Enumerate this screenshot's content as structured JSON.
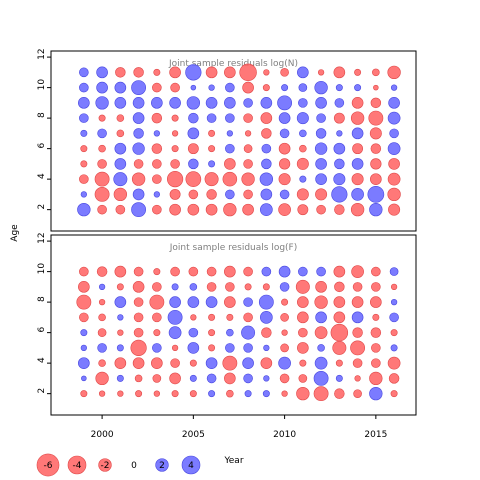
{
  "chart_data": {
    "type": "bubble-residual",
    "ylabel": "Age",
    "xlabel": "Year",
    "colors": {
      "negative": "#ff6060",
      "positive": "#6464ff",
      "border_negative": "#e04848",
      "border_positive": "#4848e0"
    },
    "x_ticks": [
      2000,
      2005,
      2010,
      2015
    ],
    "y_ticks": [
      2,
      4,
      6,
      8,
      10,
      12
    ],
    "xlim": [
      1997.2,
      2017.2
    ],
    "ylim": [
      0.6,
      12.4
    ],
    "years": [
      1999,
      2000,
      2001,
      2002,
      2003,
      2004,
      2005,
      2006,
      2007,
      2008,
      2009,
      2010,
      2011,
      2012,
      2013,
      2014,
      2015,
      2016
    ],
    "ages": [
      2,
      3,
      4,
      5,
      6,
      7,
      8,
      9,
      10,
      11
    ],
    "legend": {
      "values": [
        -6,
        -4,
        -2,
        0,
        2,
        4
      ],
      "labels": [
        "-6",
        "-4",
        "-2",
        "0",
        "2",
        "4"
      ]
    },
    "panels": [
      {
        "title": "Joint sample residuals log(N)",
        "residuals": [
          [
            2.0,
            -1.0,
            -1.0,
            2.5,
            -1.0,
            -1.5,
            -1.5,
            -1.5,
            -2.0,
            -1.5,
            1.8,
            -1.8,
            -1.3,
            -1.0,
            -1.2,
            -2.0,
            2.0,
            -1.6
          ],
          [
            0.4,
            -2.5,
            -2.0,
            1.5,
            0.4,
            -1.3,
            -1.0,
            -1.2,
            1.0,
            -1.0,
            1.5,
            1.0,
            -1.6,
            -1.6,
            3.0,
            1.8,
            3.2,
            -2.0
          ],
          [
            -1.0,
            -2.5,
            2.2,
            -2.0,
            -1.0,
            -3.0,
            -2.8,
            -2.2,
            -2.4,
            -2.0,
            2.0,
            -1.6,
            0.5,
            1.5,
            1.6,
            -1.6,
            -1.5,
            -1.8
          ],
          [
            -0.5,
            -1.0,
            1.5,
            -1.0,
            -1.0,
            -1.0,
            1.2,
            0.5,
            -1.5,
            -1.0,
            1.2,
            -1.4,
            -1.6,
            1.5,
            1.2,
            1.5,
            -1.4,
            -1.5
          ],
          [
            -0.5,
            -0.6,
            1.5,
            1.7,
            -1.2,
            -0.5,
            -1.3,
            -0.5,
            1.0,
            -0.8,
            1.0,
            -1.5,
            -0.6,
            1.7,
            1.5,
            -1.3,
            -1.2,
            1.8
          ],
          [
            0.5,
            1.0,
            -0.6,
            1.2,
            0.4,
            -0.4,
            1.5,
            -0.5,
            0.4,
            -0.4,
            -1.2,
            1.0,
            0.6,
            1.2,
            0.4,
            1.5,
            -1.6,
            1.0
          ],
          [
            1.0,
            -0.5,
            -0.6,
            1.5,
            -1.2,
            -0.5,
            1.2,
            1.0,
            1.0,
            -1.0,
            -1.5,
            1.5,
            1.6,
            1.0,
            -1.3,
            -2.0,
            -2.5,
            1.8
          ],
          [
            1.5,
            2.0,
            1.5,
            1.5,
            1.5,
            1.5,
            2.0,
            1.5,
            1.5,
            1.0,
            1.5,
            2.5,
            1.0,
            1.5,
            1.0,
            -1.5,
            -1.2,
            1.5
          ],
          [
            1.0,
            1.5,
            1.5,
            2.5,
            -1.0,
            -1.0,
            0.3,
            0.4,
            1.0,
            -1.5,
            -0.5,
            0.5,
            0.8,
            2.0,
            0.5,
            0.5,
            -0.3,
            0.4
          ],
          [
            1.0,
            1.5,
            -1.2,
            -1.2,
            -0.5,
            -1.5,
            3.0,
            -1.5,
            -1.5,
            -3.5,
            -0.4,
            -0.8,
            1.5,
            -0.4,
            -1.5,
            -0.5,
            -0.6,
            -2.0
          ]
        ]
      },
      {
        "title": "Joint sample residuals log(F)",
        "residuals": [
          [
            -0.5,
            -0.4,
            -0.4,
            -0.5,
            -0.4,
            -0.5,
            -0.5,
            0.5,
            -0.6,
            0.5,
            0.5,
            -0.4,
            -2.0,
            -2.5,
            -1.2,
            -0.8,
            2.0,
            -0.5
          ],
          [
            0.3,
            -2.0,
            0.5,
            -0.6,
            -0.8,
            -1.5,
            0.5,
            1.0,
            -1.5,
            1.0,
            0.4,
            -1.0,
            -0.8,
            2.5,
            0.5,
            -0.4,
            -2.0,
            -1.2
          ],
          [
            1.5,
            -0.6,
            -1.5,
            -1.5,
            -1.5,
            -1.0,
            -0.5,
            1.5,
            -2.5,
            1.5,
            -1.5,
            1.8,
            -0.5,
            1.8,
            -0.5,
            -1.0,
            -1.0,
            -1.8
          ],
          [
            0.4,
            1.0,
            0.5,
            -3.0,
            1.0,
            -0.4,
            1.5,
            -0.5,
            1.0,
            1.0,
            0.4,
            -0.8,
            -1.5,
            0.6,
            -2.2,
            -2.5,
            -1.0,
            0.5
          ],
          [
            0.5,
            -0.8,
            -0.4,
            -1.0,
            -0.5,
            1.8,
            1.0,
            -0.5,
            0.6,
            2.2,
            -1.2,
            -0.4,
            -1.0,
            -1.8,
            -3.5,
            -1.2,
            -1.2,
            -0.5
          ],
          [
            -1.0,
            -0.6,
            0.4,
            -1.0,
            -1.0,
            2.5,
            -0.4,
            -0.5,
            -0.5,
            -1.0,
            1.8,
            -0.8,
            -1.5,
            1.5,
            -1.5,
            1.5,
            -0.5,
            1.0
          ],
          [
            -2.5,
            -0.4,
            1.5,
            -1.0,
            -2.5,
            1.5,
            1.5,
            1.5,
            -1.5,
            1.0,
            2.5,
            -0.5,
            -1.5,
            -2.0,
            -1.5,
            -1.5,
            -1.5,
            0.4
          ],
          [
            -1.5,
            0.4,
            -0.5,
            -1.5,
            -1.0,
            0.5,
            0.6,
            -1.0,
            -1.0,
            -0.5,
            -0.5,
            1.0,
            -2.2,
            -1.5,
            -1.2,
            -1.0,
            -1.0,
            -0.4
          ],
          [
            -1.0,
            -1.2,
            -1.5,
            -1.0,
            -0.5,
            -1.0,
            -1.0,
            -1.0,
            -1.5,
            -1.0,
            1.0,
            1.5,
            1.0,
            1.0,
            -1.5,
            -1.8,
            -1.0,
            0.8
          ]
        ]
      }
    ]
  }
}
